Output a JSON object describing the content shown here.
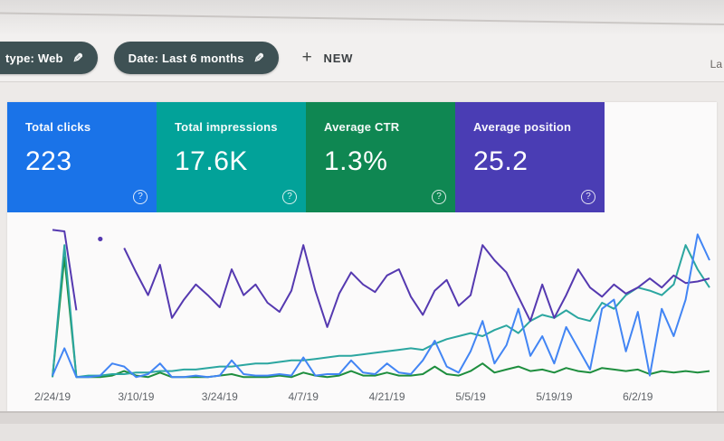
{
  "filter_bar": {
    "chips": [
      {
        "label": "type: Web",
        "edit_icon": "✎"
      },
      {
        "label": "Date: Last 6 months",
        "edit_icon": "✎"
      }
    ],
    "chip_color": "#3e5154",
    "new_button": {
      "plus": "+",
      "label": "NEW"
    },
    "top_right_partial_text": "La"
  },
  "metric_cards": [
    {
      "label": "Total clicks",
      "value": "223",
      "color": "#1a73e8",
      "help_icon": "?"
    },
    {
      "label": "Total impressions",
      "value": "17.6K",
      "color": "#02a299",
      "help_icon": "?"
    },
    {
      "label": "Average CTR",
      "value": "1.3%",
      "color": "#0f8752",
      "help_icon": "?"
    },
    {
      "label": "Average position",
      "value": "25.2",
      "color": "#4a3db4",
      "help_icon": "?"
    }
  ],
  "chart_data": {
    "type": "line",
    "title": "",
    "xlabel": "",
    "ylabel": "",
    "y_axis": "unlabeled in screenshot; values below are relative heights 0-100 of plot area",
    "grid": false,
    "legend": "none (colors match metric cards)",
    "x_ticks": [
      {
        "idx": 0,
        "label": "2/24/19"
      },
      {
        "idx": 7,
        "label": "3/10/19"
      },
      {
        "idx": 14,
        "label": "3/24/19"
      },
      {
        "idx": 21,
        "label": "4/7/19"
      },
      {
        "idx": 28,
        "label": "4/21/19"
      },
      {
        "idx": 35,
        "label": "5/5/19"
      },
      {
        "idx": 42,
        "label": "5/19/19"
      },
      {
        "idx": 49,
        "label": "6/2/19"
      }
    ],
    "series": [
      {
        "name": "CTR",
        "color": "#1e8e3e",
        "total": "1.3%",
        "values": [
          1,
          80,
          1,
          1,
          1,
          2,
          5,
          2,
          1,
          4,
          1,
          1,
          1,
          1,
          2,
          3,
          1,
          1,
          1,
          2,
          1,
          4,
          2,
          1,
          2,
          5,
          2,
          2,
          4,
          2,
          2,
          3,
          8,
          3,
          2,
          5,
          10,
          4,
          6,
          8,
          5,
          6,
          4,
          7,
          5,
          4,
          7,
          6,
          5,
          6,
          3,
          5,
          4,
          5,
          4,
          5
        ]
      },
      {
        "name": "Impressions",
        "color": "#2ba6a0",
        "total": "17.6K",
        "values": [
          1,
          88,
          1,
          2,
          2,
          3,
          3,
          4,
          4,
          5,
          5,
          6,
          6,
          7,
          8,
          8,
          9,
          10,
          10,
          11,
          12,
          12,
          13,
          14,
          15,
          15,
          16,
          17,
          18,
          19,
          20,
          19,
          23,
          26,
          28,
          30,
          28,
          32,
          35,
          30,
          38,
          42,
          40,
          45,
          40,
          38,
          50,
          46,
          55,
          60,
          58,
          55,
          62,
          88,
          72,
          60
        ]
      },
      {
        "name": "Position",
        "color": "#5539b0",
        "total": "25.2",
        "values": [
          98,
          97,
          45,
          null,
          92,
          null,
          86,
          70,
          55,
          75,
          40,
          52,
          62,
          55,
          47,
          72,
          55,
          62,
          50,
          44,
          58,
          88,
          58,
          34,
          56,
          70,
          62,
          57,
          68,
          72,
          54,
          42,
          58,
          65,
          48,
          55,
          88,
          78,
          70,
          54,
          38,
          62,
          40,
          55,
          72,
          60,
          54,
          62,
          56,
          60,
          66,
          60,
          68,
          63,
          64,
          66
        ]
      },
      {
        "name": "Clicks",
        "color": "#4285f4",
        "total": "223",
        "values": [
          2,
          20,
          1,
          1,
          2,
          10,
          8,
          1,
          3,
          10,
          1,
          1,
          2,
          1,
          2,
          12,
          3,
          2,
          2,
          3,
          2,
          14,
          2,
          3,
          3,
          12,
          4,
          3,
          10,
          4,
          3,
          12,
          25,
          8,
          4,
          18,
          38,
          10,
          22,
          46,
          15,
          28,
          10,
          34,
          20,
          6,
          46,
          52,
          18,
          44,
          2,
          46,
          28,
          52,
          95,
          78
        ]
      }
    ]
  }
}
